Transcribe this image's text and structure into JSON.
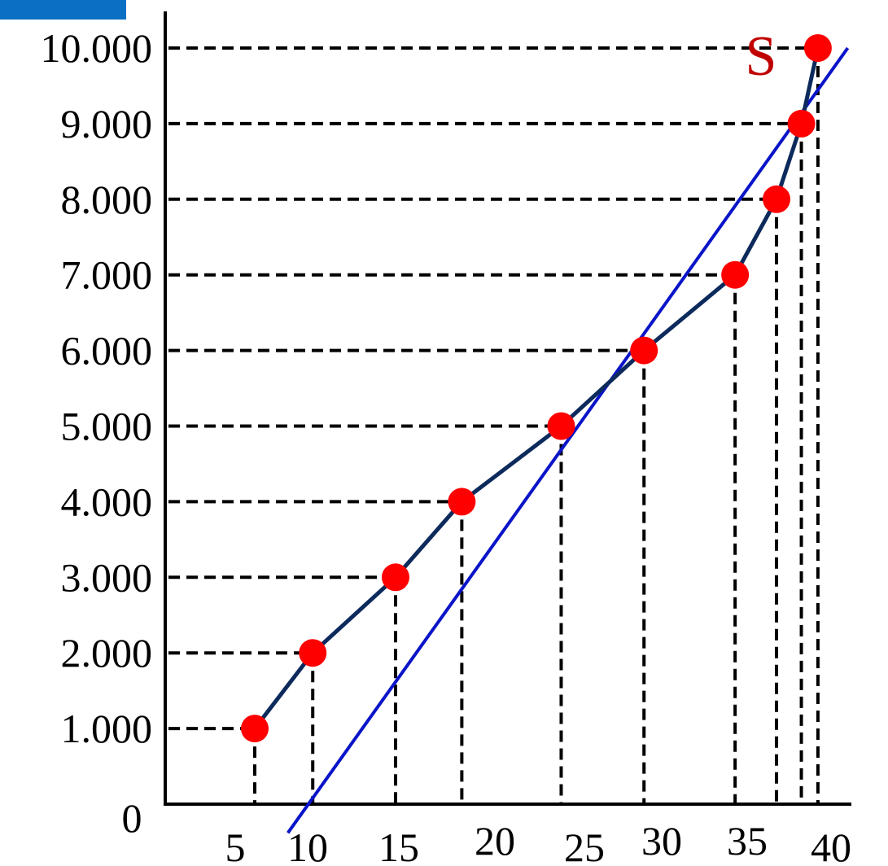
{
  "colors": {
    "background": "#ffffff",
    "axis": "#000000",
    "guide": "#000000",
    "curve": "#0d2a5c",
    "trend": "#0a14c8",
    "marker": "#ff0000",
    "label_s": "#c00000",
    "corner_tab": "#0b6fc4"
  },
  "chart_data": {
    "type": "line",
    "title": "",
    "xlabel": "",
    "ylabel": "",
    "grid": false,
    "legend": "none",
    "curve_label": "S",
    "origin_label": "0",
    "x_tick_labels": [
      "5",
      "10",
      "15",
      "20",
      "25",
      "30",
      "35",
      "40"
    ],
    "y_tick_labels": [
      "1.000",
      "2.000",
      "3.000",
      "4.000",
      "5.000",
      "6.000",
      "7.000",
      "8.000",
      "9.000",
      "10.000"
    ],
    "series": [
      {
        "x": [
          6.5,
          10,
          15,
          19,
          25,
          30,
          35.5,
          38,
          39.5,
          40.5
        ],
        "y": [
          1000,
          2000,
          3000,
          4000,
          5000,
          6000,
          7000,
          8000,
          9000,
          10000
        ]
      }
    ],
    "trend_line": {
      "x": [
        8.5,
        42.3
      ],
      "y": [
        -380,
        10000
      ]
    }
  }
}
